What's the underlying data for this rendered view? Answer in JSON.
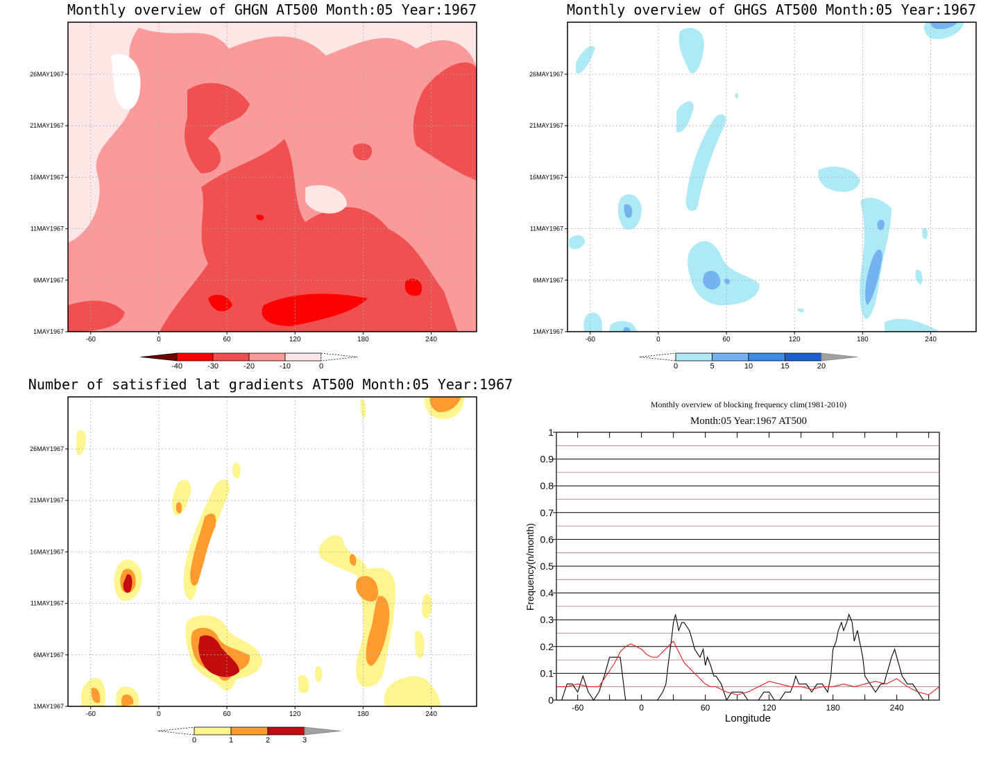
{
  "panels": {
    "ghgn": {
      "title": "Monthly overview of GHGN AT500 Month:05 Year:1967",
      "ylabels": [
        "1MAY1967",
        "6MAY1967",
        "11MAY1967",
        "16MAY1967",
        "21MAY1967",
        "26MAY1967"
      ],
      "xlabels": [
        "-60",
        "0",
        "60",
        "120",
        "180",
        "240"
      ],
      "colorbar": {
        "labels": [
          "-40",
          "-30",
          "-20",
          "-10",
          "0"
        ],
        "colors": [
          "#6e0000",
          "#ff0000",
          "#f05050",
          "#fa9a9a",
          "#fde6e6"
        ]
      }
    },
    "ghgs": {
      "title": "Monthly overview of GHGS AT500 Month:05 Year:1967",
      "ylabels": [
        "1MAY1967",
        "6MAY1967",
        "11MAY1967",
        "16MAY1967",
        "21MAY1967",
        "26MAY1967"
      ],
      "xlabels": [
        "-60",
        "0",
        "60",
        "120",
        "180",
        "240"
      ],
      "colorbar": {
        "labels": [
          "0",
          "5",
          "10",
          "15",
          "20"
        ],
        "colors": [
          "#aeeaf6",
          "#74b3f0",
          "#3a8ae6",
          "#1c5fcf",
          "#a0a0a0"
        ]
      }
    },
    "sat": {
      "title": "Number of satisfied lat gradients AT500 Month:05 Year:1967",
      "ylabels": [
        "1MAY1967",
        "6MAY1967",
        "11MAY1967",
        "16MAY1967",
        "21MAY1967",
        "26MAY1967"
      ],
      "xlabels": [
        "-60",
        "0",
        "60",
        "120",
        "180",
        "240"
      ],
      "colorbar": {
        "labels": [
          "0",
          "1",
          "2",
          "3"
        ],
        "colors": [
          "#fff58f",
          "#ff9b2e",
          "#c30c10",
          "#a0a0a0"
        ]
      }
    },
    "freq": {
      "title1": "Monthly overview of blocking frequency clim(1981-2010)",
      "title2": "Month:05 Year:1967  AT500",
      "ylabel": "Frequency(n/month)",
      "xlabel": "Longitude",
      "yticks": [
        "0",
        "0.1",
        "0.2",
        "0.3",
        "0.4",
        "0.5",
        "0.6",
        "0.7",
        "0.8",
        "0.9",
        "1"
      ],
      "xticks": [
        "-60",
        "0",
        "60",
        "120",
        "180",
        "240"
      ]
    }
  },
  "colors": {
    "black_line": "#000000",
    "red_line": "#e02020",
    "grid_major": "#000000",
    "grid_minor": "#b07070"
  },
  "chart_data": [
    {
      "type": "heatmap",
      "title": "Monthly overview of GHGN AT500 Month:05 Year:1967",
      "xlabel": "",
      "ylabel": "",
      "x_ticks": [
        -60,
        0,
        60,
        120,
        180,
        240
      ],
      "y_ticks": [
        "1MAY1967",
        "6MAY1967",
        "11MAY1967",
        "16MAY1967",
        "21MAY1967",
        "26MAY1967"
      ],
      "xlim": [
        -80,
        280
      ],
      "levels": [
        -40,
        -30,
        -20,
        -10,
        0
      ]
    },
    {
      "type": "heatmap",
      "title": "Monthly overview of GHGS AT500 Month:05 Year:1967",
      "xlabel": "",
      "ylabel": "",
      "x_ticks": [
        -60,
        0,
        60,
        120,
        180,
        240
      ],
      "y_ticks": [
        "1MAY1967",
        "6MAY1967",
        "11MAY1967",
        "16MAY1967",
        "21MAY1967",
        "26MAY1967"
      ],
      "xlim": [
        -80,
        280
      ],
      "levels": [
        0,
        5,
        10,
        15,
        20
      ]
    },
    {
      "type": "heatmap",
      "title": "Number of satisfied lat gradients AT500 Month:05 Year:1967",
      "xlabel": "",
      "ylabel": "",
      "x_ticks": [
        -60,
        0,
        60,
        120,
        180,
        240
      ],
      "y_ticks": [
        "1MAY1967",
        "6MAY1967",
        "11MAY1967",
        "16MAY1967",
        "21MAY1967",
        "26MAY1967"
      ],
      "xlim": [
        -80,
        280
      ],
      "levels": [
        0,
        1,
        2,
        3
      ]
    },
    {
      "type": "line",
      "title": "Monthly overview of blocking frequency clim(1981-2010)",
      "subtitle": "Month:05 Year:1967  AT500",
      "xlabel": "Longitude",
      "ylabel": "Frequency(n/month)",
      "xlim": [
        -80,
        280
      ],
      "ylim": [
        0,
        1
      ],
      "grid": true,
      "series": [
        {
          "color": "black",
          "x": [
            -75,
            -70,
            -65,
            -60,
            -55,
            -50,
            -45,
            -40,
            -35,
            -30,
            -25,
            -20,
            -15,
            -12,
            -10,
            -5,
            0,
            5,
            10,
            15,
            20,
            23,
            25,
            28,
            30,
            32,
            35,
            38,
            40,
            45,
            48,
            50,
            55,
            58,
            60,
            62,
            65,
            68,
            70,
            75,
            80,
            85,
            90,
            95,
            100,
            105,
            110,
            115,
            120,
            125,
            130,
            135,
            140,
            143,
            145,
            148,
            150,
            155,
            160,
            165,
            170,
            175,
            178,
            180,
            183,
            185,
            188,
            190,
            193,
            195,
            198,
            200,
            203,
            205,
            208,
            210,
            215,
            220,
            225,
            228,
            230,
            233,
            235,
            238,
            240,
            245,
            250,
            255,
            260,
            265,
            270,
            275
          ],
          "y": [
            0.0,
            0.06,
            0.06,
            0.03,
            0.09,
            0.03,
            0.0,
            0.03,
            0.09,
            0.16,
            0.16,
            0.16,
            0.0,
            0.0,
            0.0,
            0.0,
            0.0,
            0.0,
            0.0,
            0.0,
            0.03,
            0.06,
            0.13,
            0.22,
            0.29,
            0.32,
            0.26,
            0.29,
            0.29,
            0.26,
            0.22,
            0.19,
            0.16,
            0.19,
            0.13,
            0.16,
            0.13,
            0.09,
            0.09,
            0.06,
            0.0,
            0.03,
            0.03,
            0.03,
            0.0,
            0.0,
            0.0,
            0.03,
            0.03,
            0.0,
            0.0,
            0.03,
            0.03,
            0.06,
            0.09,
            0.06,
            0.06,
            0.06,
            0.03,
            0.06,
            0.06,
            0.03,
            0.09,
            0.19,
            0.22,
            0.26,
            0.29,
            0.26,
            0.29,
            0.32,
            0.29,
            0.22,
            0.26,
            0.22,
            0.16,
            0.09,
            0.06,
            0.03,
            0.06,
            0.06,
            0.09,
            0.13,
            0.16,
            0.19,
            0.16,
            0.09,
            0.06,
            0.06,
            0.03,
            0.0,
            0.0,
            0.0
          ]
        },
        {
          "color": "red",
          "x": [
            -80,
            -70,
            -60,
            -50,
            -40,
            -35,
            -30,
            -25,
            -20,
            -15,
            -10,
            -5,
            0,
            5,
            10,
            15,
            20,
            25,
            30,
            35,
            40,
            45,
            50,
            55,
            60,
            65,
            70,
            75,
            80,
            90,
            100,
            110,
            120,
            130,
            140,
            150,
            160,
            170,
            180,
            190,
            200,
            210,
            220,
            230,
            240,
            250,
            260,
            270,
            280
          ],
          "y": [
            0.05,
            0.05,
            0.06,
            0.05,
            0.05,
            0.08,
            0.11,
            0.14,
            0.18,
            0.2,
            0.21,
            0.2,
            0.19,
            0.17,
            0.16,
            0.16,
            0.18,
            0.2,
            0.22,
            0.18,
            0.14,
            0.12,
            0.1,
            0.08,
            0.06,
            0.05,
            0.05,
            0.04,
            0.03,
            0.02,
            0.03,
            0.05,
            0.07,
            0.06,
            0.05,
            0.05,
            0.04,
            0.05,
            0.05,
            0.06,
            0.05,
            0.06,
            0.07,
            0.06,
            0.08,
            0.05,
            0.03,
            0.02,
            0.05
          ]
        }
      ]
    }
  ]
}
